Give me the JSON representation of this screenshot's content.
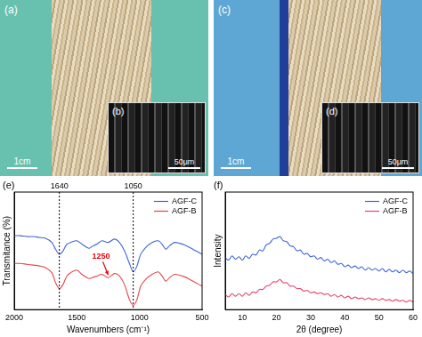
{
  "images": [
    {
      "label": "(a)",
      "scale_bar": "1cm",
      "inset": {
        "label": "(b)",
        "scale_bar": "50μm"
      }
    },
    {
      "label": "(c)",
      "scale_bar": "1cm",
      "inset": {
        "label": "(d)",
        "scale_bar": "50μm"
      }
    }
  ],
  "chart_data": [
    {
      "type": "line",
      "title": "(e)",
      "x_label": "Wavenumbers (cm⁻¹)",
      "y_label": "Transmitance (%)",
      "x": [
        2000,
        1950,
        1900,
        1850,
        1800,
        1750,
        1700,
        1670,
        1640,
        1610,
        1580,
        1550,
        1500,
        1460,
        1420,
        1400,
        1380,
        1340,
        1300,
        1250,
        1200,
        1160,
        1120,
        1080,
        1050,
        1020,
        990,
        950,
        900,
        850,
        820,
        790,
        760,
        720,
        680,
        640,
        600,
        550,
        500
      ],
      "xlim": [
        2000,
        500
      ],
      "xticks": [
        2000,
        1500,
        1000,
        500
      ],
      "ylim": [
        0,
        1.4
      ],
      "tick_labels": "x",
      "grid": false,
      "legend": "upper right",
      "series": [
        {
          "name": "AGF-C",
          "color": "#3f63d8",
          "values": [
            0.88,
            0.88,
            0.87,
            0.87,
            0.86,
            0.85,
            0.8,
            0.72,
            0.66,
            0.7,
            0.78,
            0.8,
            0.82,
            0.78,
            0.74,
            0.73,
            0.75,
            0.78,
            0.82,
            0.8,
            0.84,
            0.8,
            0.7,
            0.55,
            0.45,
            0.52,
            0.66,
            0.74,
            0.8,
            0.82,
            0.78,
            0.72,
            0.76,
            0.8,
            0.79,
            0.77,
            0.74,
            0.7,
            0.66
          ]
        },
        {
          "name": "AGF-B",
          "color": "#e8434a",
          "values": [
            0.55,
            0.55,
            0.54,
            0.53,
            0.52,
            0.5,
            0.44,
            0.32,
            0.25,
            0.3,
            0.4,
            0.44,
            0.47,
            0.42,
            0.38,
            0.37,
            0.38,
            0.4,
            0.42,
            0.38,
            0.43,
            0.4,
            0.3,
            0.12,
            0.05,
            0.12,
            0.28,
            0.36,
            0.42,
            0.45,
            0.4,
            0.34,
            0.38,
            0.42,
            0.41,
            0.39,
            0.36,
            0.32,
            0.28
          ]
        }
      ],
      "annotations": [
        {
          "x": 1640,
          "label": "1640",
          "line_style": "dotted"
        },
        {
          "x": 1050,
          "label": "1050",
          "line_style": "dotted"
        },
        {
          "x": 1250,
          "label": "1250",
          "marker": "arrow",
          "color": "#e8000b",
          "series": "AGF-B"
        }
      ]
    },
    {
      "type": "line",
      "title": "(f)",
      "x_label": "2θ (degree)",
      "y_label": "Intensity",
      "x": [
        5,
        6,
        7,
        8,
        9,
        10,
        11,
        12,
        13,
        14,
        15,
        16,
        17,
        18,
        19,
        20,
        21,
        22,
        23,
        24,
        25,
        26,
        27,
        28,
        29,
        30,
        31,
        32,
        33,
        34,
        35,
        36,
        37,
        38,
        39,
        40,
        41,
        42,
        43,
        44,
        45,
        46,
        47,
        48,
        49,
        50,
        51,
        52,
        53,
        54,
        55,
        56,
        57,
        58,
        59,
        60
      ],
      "xlim": [
        5,
        60
      ],
      "xticks": [
        10,
        20,
        30,
        40,
        50,
        60
      ],
      "ylim": [
        0,
        1.4
      ],
      "tick_labels": "x",
      "grid": false,
      "legend": "upper right",
      "series": [
        {
          "name": "AGF-C",
          "color": "#3f63d8",
          "values": [
            0.62,
            0.59,
            0.64,
            0.6,
            0.63,
            0.59,
            0.64,
            0.61,
            0.66,
            0.65,
            0.71,
            0.7,
            0.77,
            0.79,
            0.84,
            0.85,
            0.87,
            0.82,
            0.81,
            0.76,
            0.75,
            0.7,
            0.71,
            0.66,
            0.67,
            0.63,
            0.64,
            0.6,
            0.62,
            0.58,
            0.6,
            0.56,
            0.58,
            0.54,
            0.55,
            0.51,
            0.53,
            0.5,
            0.52,
            0.49,
            0.51,
            0.47,
            0.5,
            0.47,
            0.49,
            0.46,
            0.49,
            0.45,
            0.48,
            0.45,
            0.47,
            0.44,
            0.47,
            0.44,
            0.46,
            0.43
          ]
        },
        {
          "name": "AGF-B",
          "color": "#e8436a",
          "values": [
            0.18,
            0.15,
            0.19,
            0.16,
            0.19,
            0.16,
            0.2,
            0.17,
            0.21,
            0.2,
            0.24,
            0.24,
            0.28,
            0.29,
            0.33,
            0.33,
            0.36,
            0.32,
            0.32,
            0.28,
            0.28,
            0.25,
            0.25,
            0.22,
            0.23,
            0.2,
            0.21,
            0.19,
            0.2,
            0.18,
            0.19,
            0.16,
            0.18,
            0.15,
            0.17,
            0.14,
            0.16,
            0.13,
            0.15,
            0.13,
            0.14,
            0.12,
            0.14,
            0.12,
            0.13,
            0.11,
            0.13,
            0.11,
            0.12,
            0.1,
            0.12,
            0.1,
            0.11,
            0.09,
            0.11,
            0.09
          ]
        }
      ]
    }
  ]
}
